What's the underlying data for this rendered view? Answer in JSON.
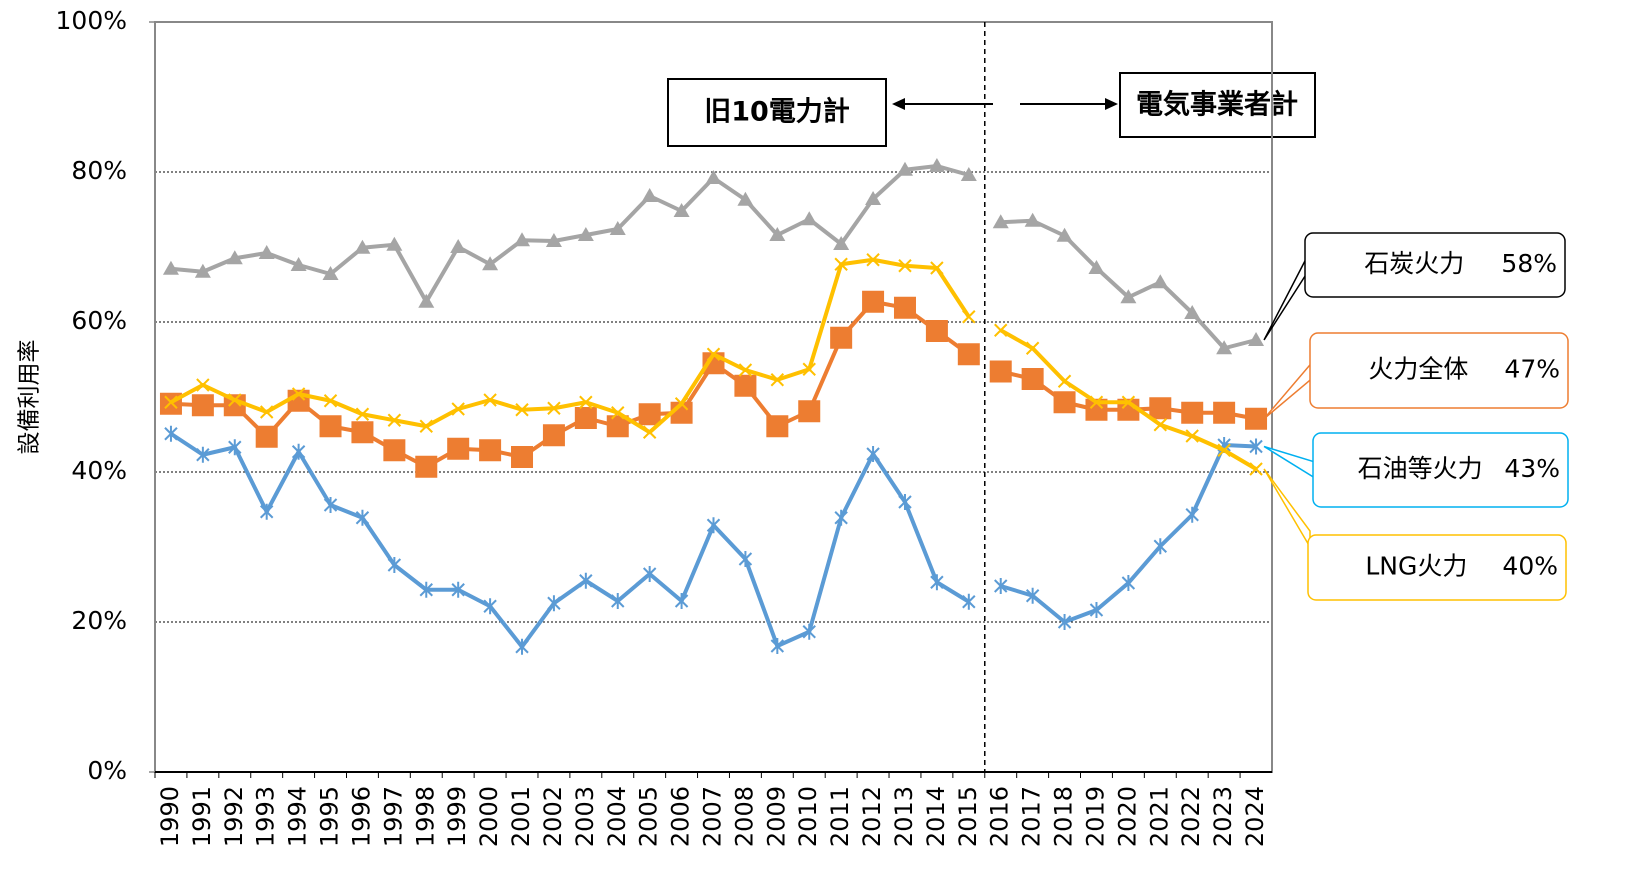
{
  "chart_data": {
    "type": "line",
    "y_label": "設備利用率",
    "categories": [
      "1990",
      "1991",
      "1992",
      "1993",
      "1994",
      "1995",
      "1996",
      "1997",
      "1998",
      "1999",
      "2000",
      "2001",
      "2002",
      "2003",
      "2004",
      "2005",
      "2006",
      "2007",
      "2008",
      "2009",
      "2010",
      "2011",
      "2012",
      "2013",
      "2014",
      "2015",
      "2016",
      "2017",
      "2018",
      "2019",
      "2020",
      "2021",
      "2022",
      "2023",
      "2024"
    ],
    "ylim": [
      0,
      100
    ],
    "yticks": [
      {
        "value": 0,
        "label": "0%"
      },
      {
        "value": 20,
        "label": "20%"
      },
      {
        "value": 40,
        "label": "40%"
      },
      {
        "value": 60,
        "label": "60%"
      },
      {
        "value": 80,
        "label": "80%"
      },
      {
        "value": 100,
        "label": "100%"
      }
    ],
    "grid": true,
    "break_after": "2015",
    "annotations": {
      "left": "旧10電力計",
      "right": "電気事業者計"
    },
    "series": [
      {
        "name": "石炭火力",
        "end_label": "58%",
        "color": "#a5a5a5",
        "border": "#000000",
        "marker": "triangle",
        "values": [
          67.1,
          66.7,
          68.5,
          69.2,
          67.6,
          66.4,
          69.9,
          70.3,
          62.7,
          70.0,
          67.7,
          70.9,
          70.8,
          71.6,
          72.4,
          76.8,
          74.8,
          79.2,
          76.3,
          71.6,
          73.7,
          70.4,
          76.4,
          80.3,
          80.8,
          79.6,
          73.3,
          73.5,
          71.5,
          67.2,
          63.3,
          65.3,
          61.2,
          56.5,
          57.6
        ]
      },
      {
        "name": "火力全体",
        "end_label": "47%",
        "color": "#ed7d31",
        "border": "#ed7d31",
        "marker": "square",
        "values": [
          49.1,
          48.9,
          48.9,
          44.7,
          49.5,
          46.1,
          45.3,
          42.9,
          40.7,
          43.1,
          42.9,
          42.0,
          44.9,
          47.2,
          46.1,
          47.7,
          47.9,
          54.5,
          51.5,
          46.1,
          48.1,
          57.9,
          62.7,
          61.9,
          58.8,
          55.7,
          53.4,
          52.4,
          49.3,
          48.3,
          48.3,
          48.5,
          47.9,
          47.9,
          47.1
        ]
      },
      {
        "name": "石油等火力",
        "end_label": "43%",
        "color": "#5b9bd5",
        "border": "#00b0f0",
        "marker": "star",
        "values": [
          45.1,
          42.3,
          43.3,
          34.7,
          42.7,
          35.6,
          33.9,
          27.6,
          24.3,
          24.3,
          22.1,
          16.7,
          22.5,
          25.5,
          22.8,
          26.4,
          22.8,
          32.9,
          28.4,
          16.8,
          18.7,
          33.9,
          42.4,
          36.0,
          25.3,
          22.7,
          24.8,
          23.5,
          20.0,
          21.6,
          25.2,
          30.1,
          34.3,
          43.6,
          43.4
        ]
      },
      {
        "name": "LNG火力",
        "end_label": "40%",
        "color": "#ffc000",
        "border": "#ffc000",
        "marker": "x",
        "values": [
          49.3,
          51.6,
          49.6,
          48.0,
          50.4,
          49.5,
          47.7,
          46.9,
          46.1,
          48.4,
          49.6,
          48.3,
          48.5,
          49.3,
          47.9,
          45.3,
          49.1,
          55.7,
          53.6,
          52.3,
          53.7,
          67.7,
          68.3,
          67.5,
          67.2,
          60.7,
          58.9,
          56.5,
          52.1,
          49.3,
          49.3,
          46.3,
          44.8,
          42.9,
          40.4
        ]
      }
    ]
  }
}
